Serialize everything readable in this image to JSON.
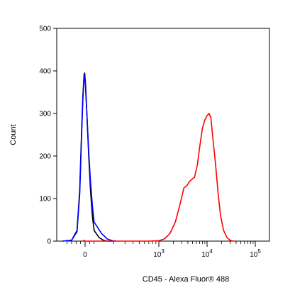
{
  "chart_data": {
    "type": "line",
    "title": "",
    "xlabel": "CD45 - Alexa Fluor® 488",
    "ylabel": "Count",
    "x_scale": "biexponential",
    "ylim": [
      0,
      500
    ],
    "xlim": [
      -300,
      200000
    ],
    "grid": false,
    "legend": "none",
    "y_ticks": [
      {
        "value": 0,
        "label": "0"
      },
      {
        "value": 100,
        "label": "100"
      },
      {
        "value": 200,
        "label": "200"
      },
      {
        "value": 300,
        "label": "300"
      },
      {
        "value": 400,
        "label": "400"
      },
      {
        "value": 500,
        "label": "500"
      }
    ],
    "x_ticks": [
      {
        "value": 0,
        "base": "0",
        "exp": ""
      },
      {
        "value": 1000,
        "base": "10",
        "exp": "3"
      },
      {
        "value": 10000,
        "base": "10",
        "exp": "4"
      },
      {
        "value": 100000,
        "base": "10",
        "exp": "5"
      }
    ],
    "series": [
      {
        "color": "#000000",
        "points": [
          [
            -250,
            0
          ],
          [
            -150,
            2
          ],
          [
            -90,
            25
          ],
          [
            -60,
            120
          ],
          [
            -40,
            250
          ],
          [
            -25,
            340
          ],
          [
            -12,
            390
          ],
          [
            -5,
            395
          ],
          [
            5,
            370
          ],
          [
            20,
            300
          ],
          [
            40,
            200
          ],
          [
            60,
            120
          ],
          [
            80,
            60
          ],
          [
            100,
            25
          ],
          [
            120,
            8
          ],
          [
            140,
            2
          ],
          [
            160,
            0
          ],
          [
            200,
            0
          ]
        ]
      },
      {
        "color": "#0000ff",
        "points": [
          [
            -250,
            0
          ],
          [
            -150,
            2
          ],
          [
            -90,
            22
          ],
          [
            -60,
            110
          ],
          [
            -40,
            240
          ],
          [
            -25,
            330
          ],
          [
            -12,
            385
          ],
          [
            -5,
            390
          ],
          [
            5,
            360
          ],
          [
            20,
            300
          ],
          [
            40,
            210
          ],
          [
            60,
            140
          ],
          [
            80,
            85
          ],
          [
            100,
            45
          ],
          [
            130,
            18
          ],
          [
            160,
            5
          ],
          [
            190,
            1
          ],
          [
            220,
            0
          ]
        ]
      },
      {
        "color": "#ff0000",
        "points": [
          [
            -20,
            0
          ],
          [
            -10,
            2
          ],
          [
            0,
            0
          ],
          [
            200,
            0
          ],
          [
            700,
            0
          ],
          [
            1000,
            1
          ],
          [
            1300,
            5
          ],
          [
            1700,
            18
          ],
          [
            2200,
            45
          ],
          [
            2800,
            90
          ],
          [
            3300,
            125
          ],
          [
            3800,
            130
          ],
          [
            4300,
            140
          ],
          [
            4800,
            145
          ],
          [
            5500,
            150
          ],
          [
            6300,
            180
          ],
          [
            7000,
            220
          ],
          [
            8000,
            265
          ],
          [
            9000,
            285
          ],
          [
            10000,
            295
          ],
          [
            11000,
            300
          ],
          [
            12000,
            290
          ],
          [
            13000,
            250
          ],
          [
            15000,
            180
          ],
          [
            17000,
            110
          ],
          [
            19000,
            60
          ],
          [
            22000,
            25
          ],
          [
            26000,
            8
          ],
          [
            30000,
            2
          ],
          [
            35000,
            0
          ]
        ]
      }
    ]
  }
}
